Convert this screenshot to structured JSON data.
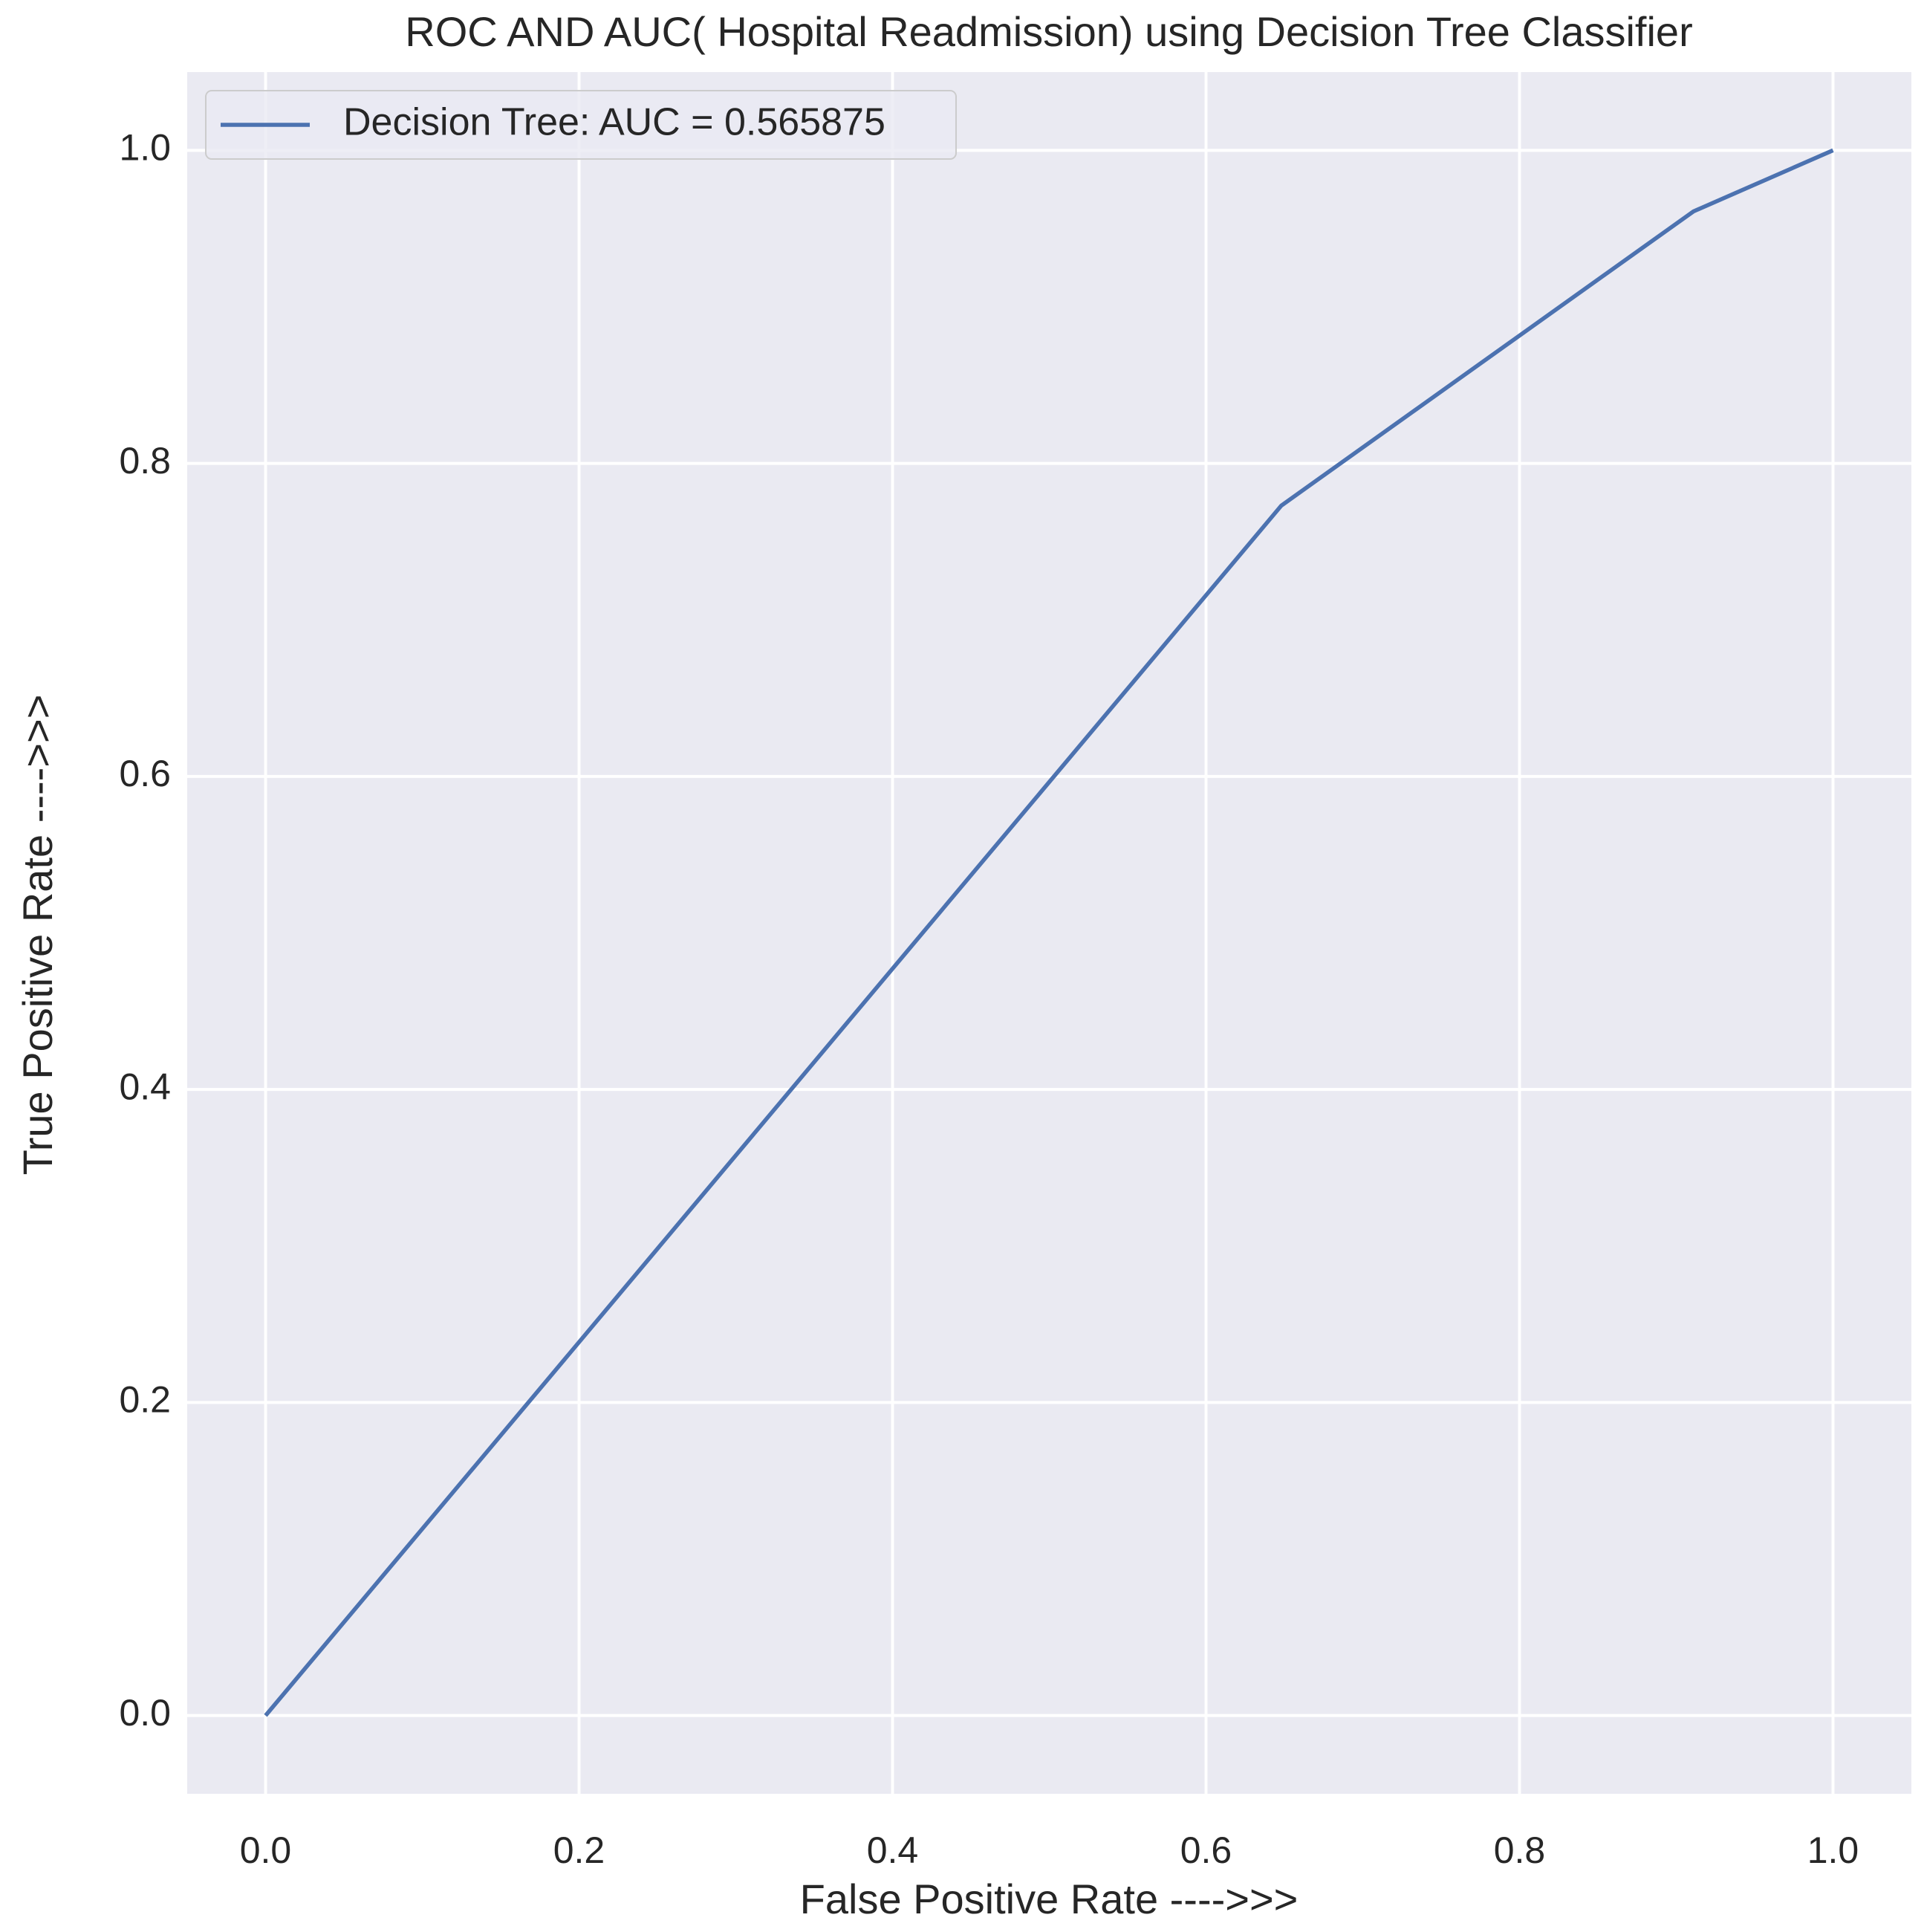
{
  "chart_data": {
    "type": "line",
    "title": "ROC AND AUC( Hospital Readmission) using Decision Tree Classifier",
    "x_label": "False Positive Rate ---->>>",
    "y_label": "True Positive Rate ---->>>",
    "x": [
      0,
      0.648,
      0.911,
      1
    ],
    "series": [
      {
        "name": "Decision Tree: AUC = 0.565875",
        "color": "#4c72b0",
        "values": [
          0,
          0.773,
          0.961,
          1
        ]
      }
    ],
    "xlim": [
      -0.05,
      1.05
    ],
    "ylim": [
      -0.05,
      1.05
    ],
    "xticks": [
      {
        "value": 0,
        "label": "0.0"
      },
      0.2,
      0.4,
      0.6,
      0.8,
      {
        "value": 1,
        "label": "1.0"
      }
    ],
    "yticks": [
      {
        "value": 0,
        "label": "0.0"
      },
      0.2,
      0.4,
      0.6,
      0.8,
      {
        "value": 1,
        "label": "1.0"
      }
    ],
    "grid": true,
    "legend": "upper-left"
  }
}
